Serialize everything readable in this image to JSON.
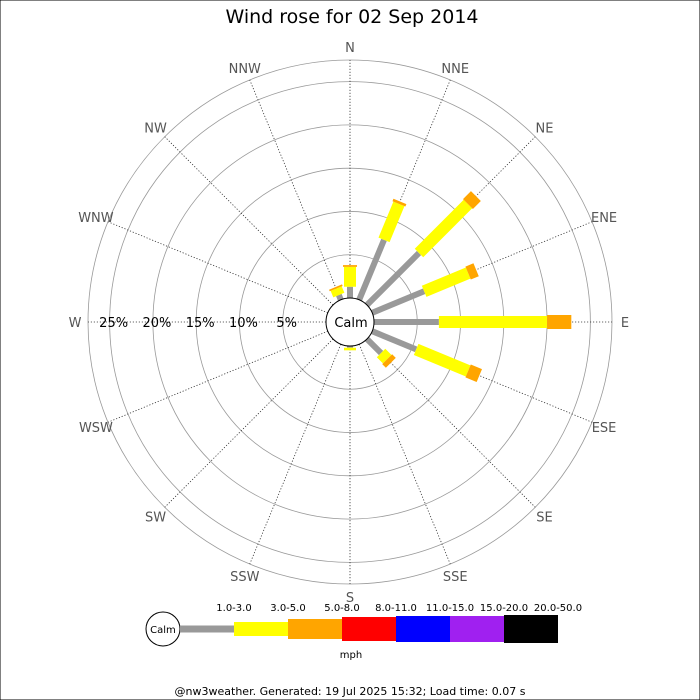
{
  "chart_data": {
    "type": "wind-rose",
    "title": "Wind rose for 02 Sep 2014",
    "directions": [
      "N",
      "NNE",
      "NE",
      "ENE",
      "E",
      "ESE",
      "SE",
      "SSE",
      "S",
      "SSW",
      "SW",
      "WSW",
      "W",
      "WNW",
      "NW",
      "NNW"
    ],
    "radial_tick_labels": [
      "5%",
      "10%",
      "15%",
      "20%",
      "25%"
    ],
    "rmax_percent": 27.5,
    "calm_label": "Calm",
    "unit_label": "mph",
    "speed_bins": [
      {
        "label": "1.0-3.0",
        "color": "#999999"
      },
      {
        "label": "3.0-5.0",
        "color": "#ffff00"
      },
      {
        "label": "5.0-8.0",
        "color": "#ffa500"
      },
      {
        "label": "8.0-11.0",
        "color": "#ff0000"
      },
      {
        "label": "11.0-15.0",
        "color": "#0000ff"
      },
      {
        "label": "15.0-20.0",
        "color": "#a020f0"
      },
      {
        "label": "20.0-50.0",
        "color": "#000000"
      }
    ],
    "series": [
      {
        "name": "1.0-3.0",
        "values": [
          1.3,
          7.5,
          8.5,
          6.5,
          7.5,
          5.5,
          2.3,
          0,
          0.2,
          0,
          0,
          0,
          0,
          0,
          0,
          0.6
        ]
      },
      {
        "name": "3.0-5.0",
        "values": [
          2.3,
          4.5,
          8.0,
          5.5,
          12.5,
          6.5,
          1.0,
          0,
          0.3,
          0,
          0,
          0,
          0,
          0,
          0,
          0.8
        ]
      },
      {
        "name": "5.0-8.0",
        "values": [
          0.2,
          0.3,
          1.3,
          1.0,
          2.8,
          1.4,
          0.6,
          0,
          0,
          0,
          0,
          0,
          0,
          0,
          0,
          0.2
        ]
      },
      {
        "name": "8.0-11.0",
        "values": [
          0,
          0,
          0,
          0,
          0,
          0,
          0,
          0,
          0,
          0,
          0,
          0,
          0,
          0,
          0,
          0
        ]
      },
      {
        "name": "11.0-15.0",
        "values": [
          0,
          0,
          0,
          0,
          0,
          0,
          0,
          0,
          0,
          0,
          0,
          0,
          0,
          0,
          0,
          0
        ]
      },
      {
        "name": "15.0-20.0",
        "values": [
          0,
          0,
          0,
          0,
          0,
          0,
          0,
          0,
          0,
          0,
          0,
          0,
          0,
          0,
          0,
          0
        ]
      },
      {
        "name": "20.0-50.0",
        "values": [
          0,
          0,
          0,
          0,
          0,
          0,
          0,
          0,
          0,
          0,
          0,
          0,
          0,
          0,
          0,
          0
        ]
      }
    ]
  },
  "footer": "@nw3weather. Generated: 19 Jul 2025 15:32; Load time: 0.07 s"
}
